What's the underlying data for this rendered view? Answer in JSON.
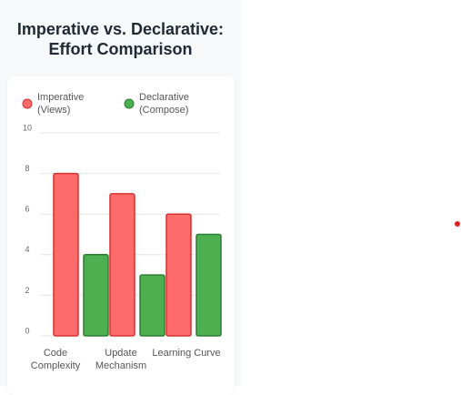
{
  "chart_data": {
    "type": "bar",
    "title": "Imperative vs. Declarative: Effort Comparison",
    "categories": [
      "Code Complexity",
      "Update Mechanism",
      "Learning Curve"
    ],
    "series": [
      {
        "name": "Imperative (Views)",
        "color": "#ff6b6b",
        "values": [
          8,
          7,
          6
        ]
      },
      {
        "name": "Declarative (Compose)",
        "color": "#4caf50",
        "values": [
          4,
          3,
          5
        ]
      }
    ],
    "ylim": [
      0,
      10
    ],
    "yticks": [
      0,
      2,
      4,
      6,
      8,
      10
    ],
    "grid": true
  }
}
